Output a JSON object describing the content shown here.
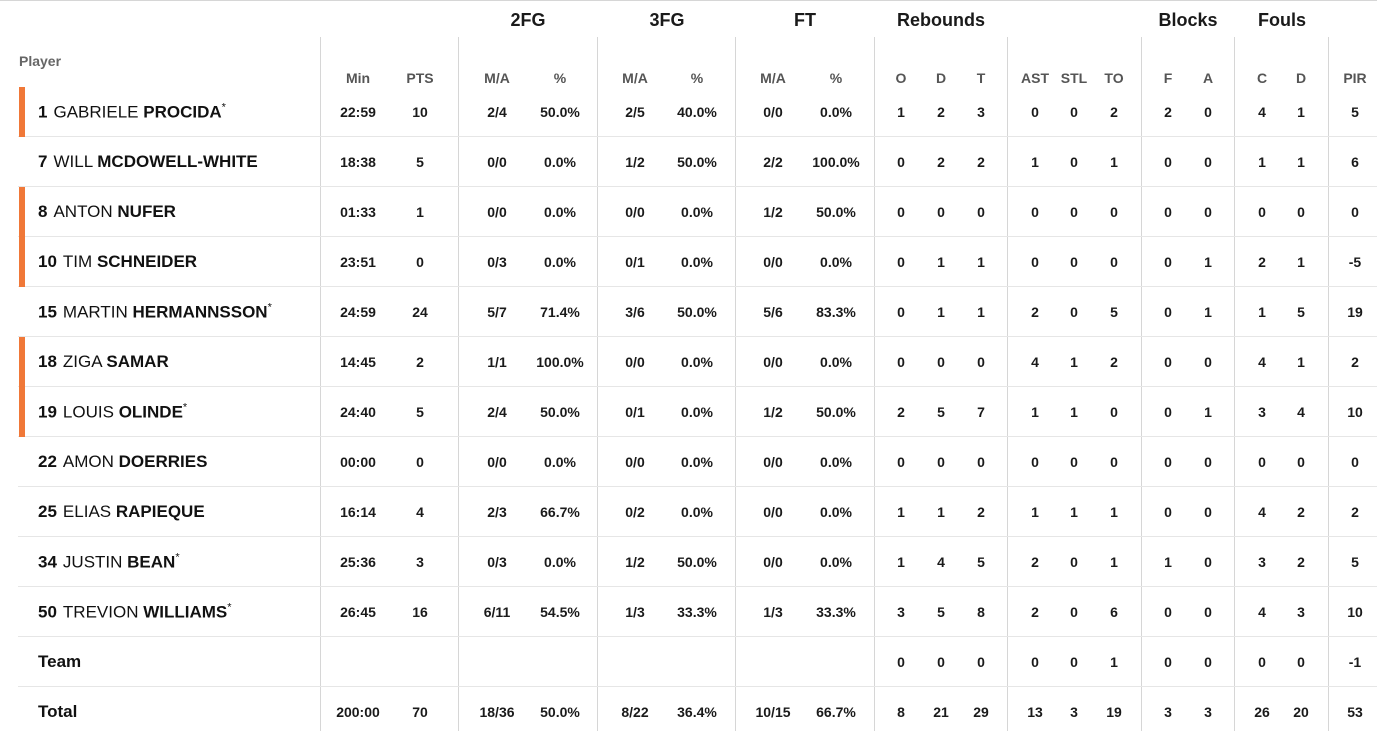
{
  "headers": {
    "player": "Player",
    "groups": [
      "2FG",
      "3FG",
      "FT",
      "Rebounds",
      "Blocks",
      "Fouls"
    ],
    "columns": [
      "Min",
      "PTS",
      "M/A",
      "%",
      "M/A",
      "%",
      "M/A",
      "%",
      "O",
      "D",
      "T",
      "AST",
      "STL",
      "TO",
      "F",
      "A",
      "C",
      "D",
      "PIR"
    ]
  },
  "players": [
    {
      "number": "1",
      "first": "GABRIELE",
      "last": "PROCIDA",
      "star": "*",
      "marker": true,
      "stats": [
        "22:59",
        "10",
        "2/4",
        "50.0%",
        "2/5",
        "40.0%",
        "0/0",
        "0.0%",
        "1",
        "2",
        "3",
        "0",
        "0",
        "2",
        "2",
        "0",
        "4",
        "1",
        "5"
      ]
    },
    {
      "number": "7",
      "first": "WILL",
      "last": "MCDOWELL-WHITE",
      "star": "",
      "marker": false,
      "stats": [
        "18:38",
        "5",
        "0/0",
        "0.0%",
        "1/2",
        "50.0%",
        "2/2",
        "100.0%",
        "0",
        "2",
        "2",
        "1",
        "0",
        "1",
        "0",
        "0",
        "1",
        "1",
        "6"
      ]
    },
    {
      "number": "8",
      "first": "ANTON",
      "last": "NUFER",
      "star": "",
      "marker": true,
      "stats": [
        "01:33",
        "1",
        "0/0",
        "0.0%",
        "0/0",
        "0.0%",
        "1/2",
        "50.0%",
        "0",
        "0",
        "0",
        "0",
        "0",
        "0",
        "0",
        "0",
        "0",
        "0",
        "0"
      ]
    },
    {
      "number": "10",
      "first": "TIM",
      "last": "SCHNEIDER",
      "star": "",
      "marker": true,
      "stats": [
        "23:51",
        "0",
        "0/3",
        "0.0%",
        "0/1",
        "0.0%",
        "0/0",
        "0.0%",
        "0",
        "1",
        "1",
        "0",
        "0",
        "0",
        "0",
        "1",
        "2",
        "1",
        "-5"
      ]
    },
    {
      "number": "15",
      "first": "MARTIN",
      "last": "HERMANNSSON",
      "star": "*",
      "marker": false,
      "stats": [
        "24:59",
        "24",
        "5/7",
        "71.4%",
        "3/6",
        "50.0%",
        "5/6",
        "83.3%",
        "0",
        "1",
        "1",
        "2",
        "0",
        "5",
        "0",
        "1",
        "1",
        "5",
        "19"
      ]
    },
    {
      "number": "18",
      "first": "ZIGA",
      "last": "SAMAR",
      "star": "",
      "marker": true,
      "stats": [
        "14:45",
        "2",
        "1/1",
        "100.0%",
        "0/0",
        "0.0%",
        "0/0",
        "0.0%",
        "0",
        "0",
        "0",
        "4",
        "1",
        "2",
        "0",
        "0",
        "4",
        "1",
        "2"
      ]
    },
    {
      "number": "19",
      "first": "LOUIS",
      "last": "OLINDE",
      "star": "*",
      "marker": true,
      "stats": [
        "24:40",
        "5",
        "2/4",
        "50.0%",
        "0/1",
        "0.0%",
        "1/2",
        "50.0%",
        "2",
        "5",
        "7",
        "1",
        "1",
        "0",
        "0",
        "1",
        "3",
        "4",
        "10"
      ]
    },
    {
      "number": "22",
      "first": "AMON",
      "last": "DOERRIES",
      "star": "",
      "marker": false,
      "stats": [
        "00:00",
        "0",
        "0/0",
        "0.0%",
        "0/0",
        "0.0%",
        "0/0",
        "0.0%",
        "0",
        "0",
        "0",
        "0",
        "0",
        "0",
        "0",
        "0",
        "0",
        "0",
        "0"
      ]
    },
    {
      "number": "25",
      "first": "ELIAS",
      "last": "RAPIEQUE",
      "star": "",
      "marker": false,
      "stats": [
        "16:14",
        "4",
        "2/3",
        "66.7%",
        "0/2",
        "0.0%",
        "0/0",
        "0.0%",
        "1",
        "1",
        "2",
        "1",
        "1",
        "1",
        "0",
        "0",
        "4",
        "2",
        "2"
      ]
    },
    {
      "number": "34",
      "first": "JUSTIN",
      "last": "BEAN",
      "star": "*",
      "marker": false,
      "stats": [
        "25:36",
        "3",
        "0/3",
        "0.0%",
        "1/2",
        "50.0%",
        "0/0",
        "0.0%",
        "1",
        "4",
        "5",
        "2",
        "0",
        "1",
        "1",
        "0",
        "3",
        "2",
        "5"
      ]
    },
    {
      "number": "50",
      "first": "TREVION",
      "last": "WILLIAMS",
      "star": "*",
      "marker": false,
      "stats": [
        "26:45",
        "16",
        "6/11",
        "54.5%",
        "1/3",
        "33.3%",
        "1/3",
        "33.3%",
        "3",
        "5",
        "8",
        "2",
        "0",
        "6",
        "0",
        "0",
        "4",
        "3",
        "10"
      ]
    }
  ],
  "team": {
    "label": "Team",
    "stats": [
      "",
      "",
      "",
      "",
      "",
      "",
      "",
      "",
      "0",
      "0",
      "0",
      "0",
      "0",
      "1",
      "0",
      "0",
      "0",
      "0",
      "-1"
    ]
  },
  "total": {
    "label": "Total",
    "stats": [
      "200:00",
      "70",
      "18/36",
      "50.0%",
      "8/22",
      "36.4%",
      "10/15",
      "66.7%",
      "8",
      "21",
      "29",
      "13",
      "3",
      "19",
      "3",
      "3",
      "26",
      "20",
      "53"
    ]
  },
  "colors": {
    "starter_marker": "#f07838",
    "divider": "#d6d6d6"
  }
}
